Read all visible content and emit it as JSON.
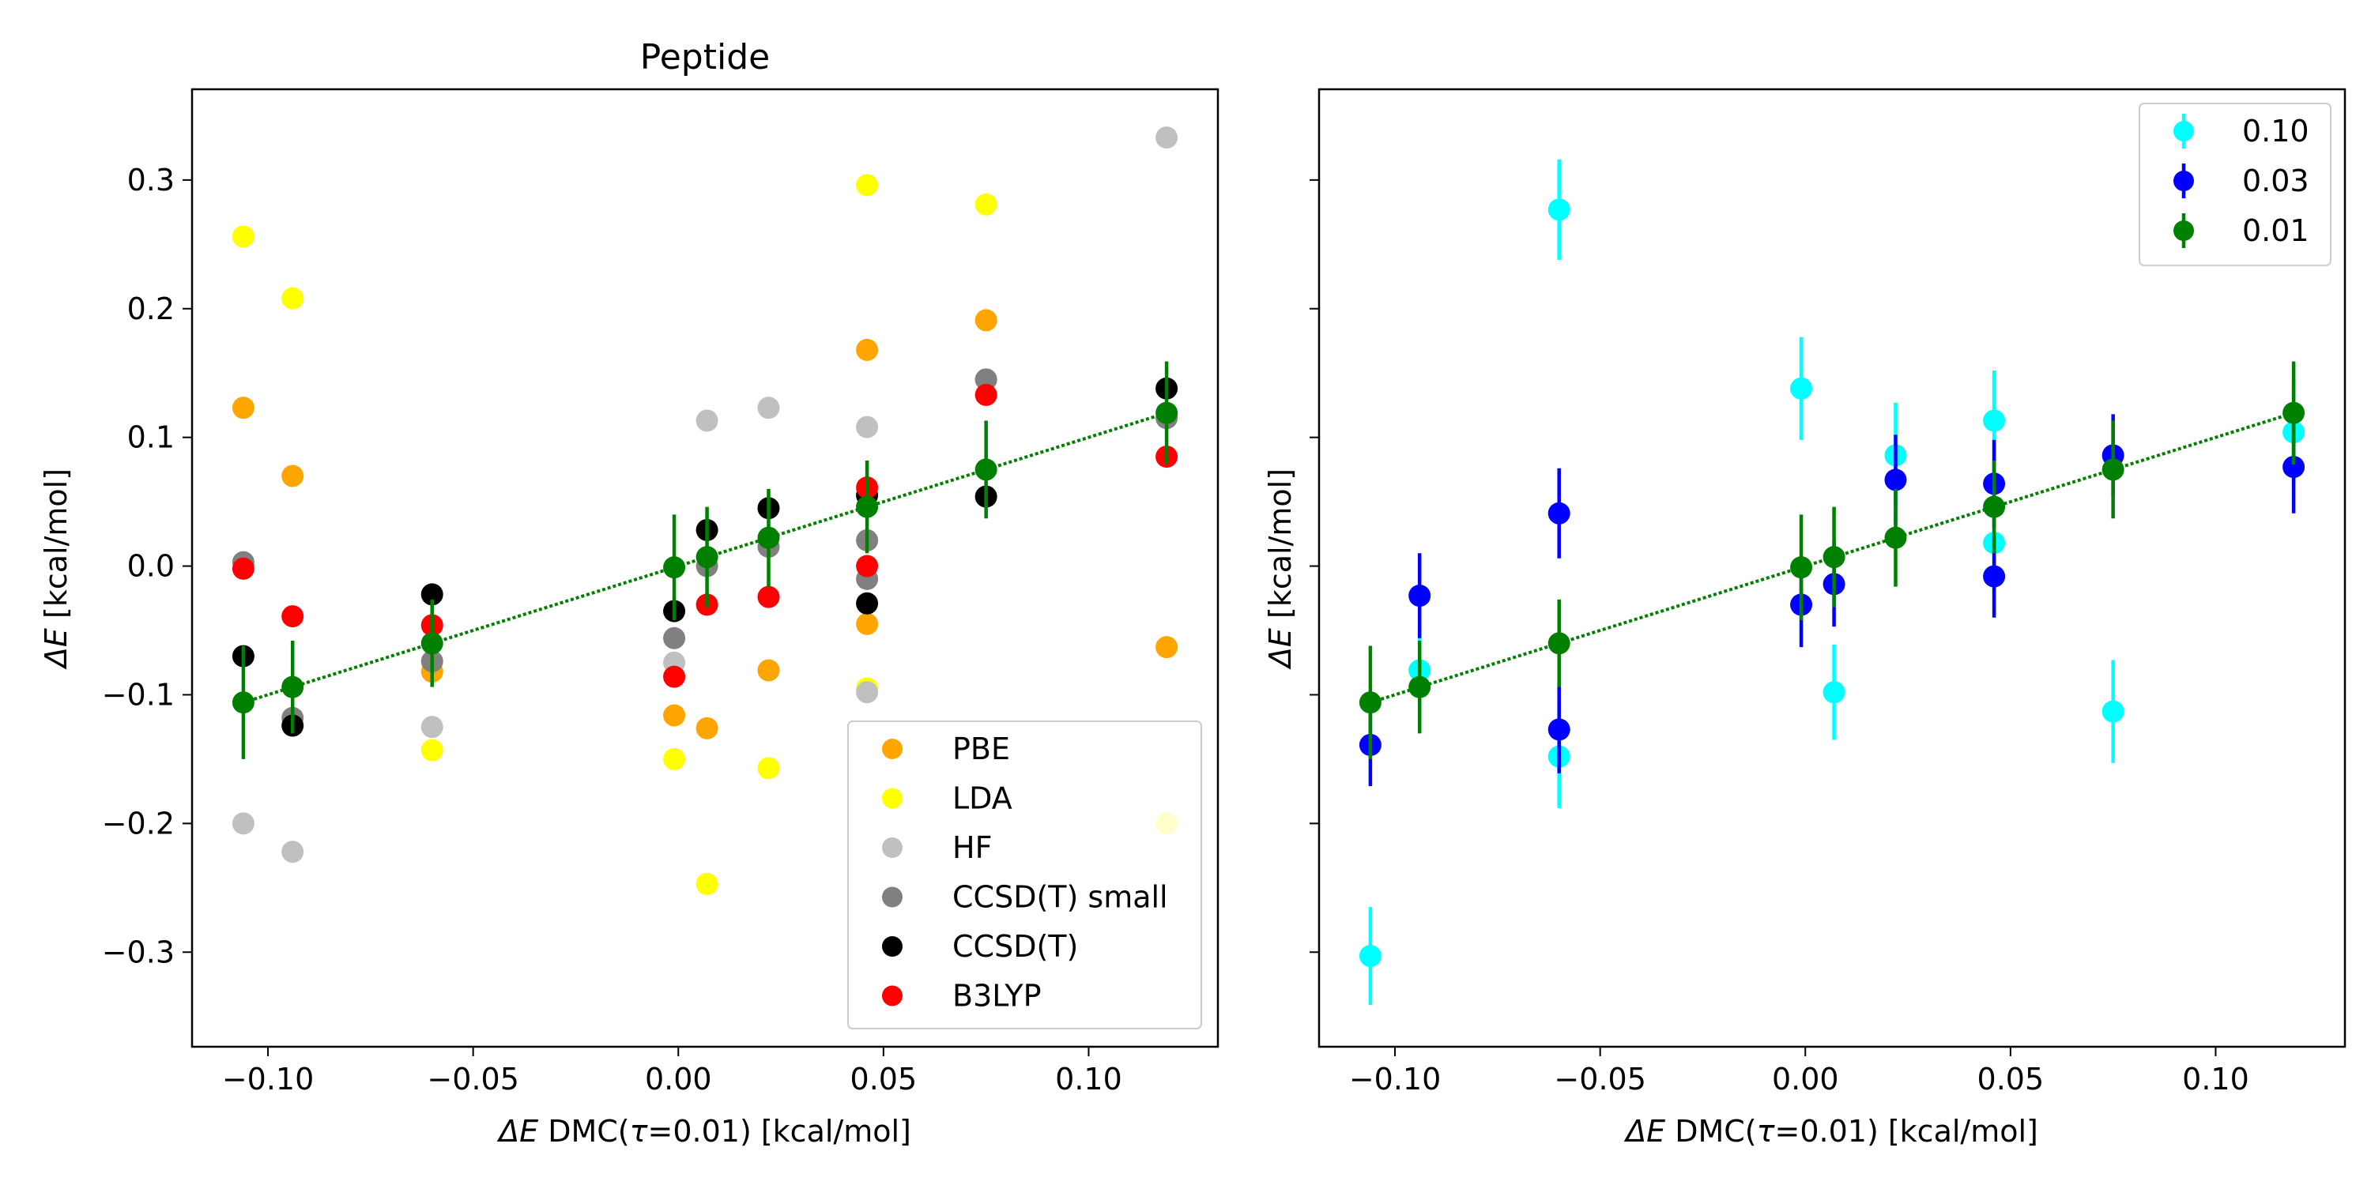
{
  "chart_data": [
    {
      "type": "scatter",
      "title": "Peptide",
      "xlabel_sym": "ΔE",
      "xlabel_pre": " DMC(",
      "xlabel_tau": "τ",
      "xlabel_post": "=0.01) [kcal/mol]",
      "ylabel_sym": "ΔE",
      "ylabel_post": " [kcal/mol]",
      "xlim": [
        -0.1185,
        0.1315
      ],
      "ylim": [
        -0.3735,
        0.3705
      ],
      "xticks": [
        -0.1,
        -0.05,
        0.0,
        0.05,
        0.1
      ],
      "xtick_labels": [
        "−0.10",
        "−0.05",
        "0.00",
        "0.05",
        "0.10"
      ],
      "yticks": [
        -0.3,
        -0.2,
        -0.1,
        0.0,
        0.1,
        0.2,
        0.3
      ],
      "ytick_labels": [
        "−0.3",
        "−0.2",
        "−0.1",
        "0.0",
        "0.1",
        "0.2",
        "0.3"
      ],
      "legend_position": "lower-right",
      "x": [
        -0.106,
        -0.094,
        -0.06,
        -0.001,
        0.007,
        0.022,
        0.046,
        0.075,
        0.119
      ],
      "series": [
        {
          "name": "PBE",
          "color": "#ffa500",
          "y": [
            0.123,
            0.07,
            -0.082,
            -0.116,
            -0.126,
            -0.081,
            -0.045,
            0.191,
            -0.063
          ]
        },
        {
          "name": "",
          "color": "#ffa500",
          "x": [
            0.046
          ],
          "y": [
            0.168
          ]
        },
        {
          "name": "LDA",
          "color": "#ffff00",
          "y": [
            0.256,
            0.208,
            -0.143,
            -0.15,
            -0.247,
            -0.157,
            0.296,
            0.281,
            -0.2
          ]
        },
        {
          "name": "",
          "color": "#ffff00",
          "x": [
            0.046
          ],
          "y": [
            -0.095
          ]
        },
        {
          "name": "HF",
          "color": "#c0c0c0",
          "y": [
            -0.2,
            -0.222,
            -0.125,
            -0.075,
            0.113,
            0.123,
            0.108,
            0.145,
            0.333
          ]
        },
        {
          "name": "",
          "color": "#c0c0c0",
          "x": [
            0.046
          ],
          "y": [
            -0.098
          ]
        },
        {
          "name": "CCSD(T) small",
          "color": "#808080",
          "y": [
            0.003,
            -0.118,
            -0.074,
            -0.056,
            0.0,
            0.015,
            -0.01,
            0.145,
            0.115
          ]
        },
        {
          "name": "",
          "color": "#808080",
          "x": [
            0.046
          ],
          "y": [
            0.02
          ]
        },
        {
          "name": "CCSD(T)",
          "color": "#000000",
          "y": [
            -0.07,
            -0.124,
            -0.022,
            -0.035,
            0.028,
            0.045,
            -0.029,
            0.054,
            0.138
          ]
        },
        {
          "name": "",
          "color": "#000000",
          "x": [
            0.046
          ],
          "y": [
            0.055
          ]
        },
        {
          "name": "B3LYP",
          "color": "#ff0000",
          "y": [
            -0.002,
            -0.039,
            -0.046,
            -0.086,
            -0.03,
            -0.024,
            0.0,
            0.133,
            0.085
          ]
        },
        {
          "name": "",
          "color": "#ff0000",
          "x": [
            0.046
          ],
          "y": [
            0.061
          ]
        }
      ],
      "errorbar_series": [
        {
          "name": "",
          "color": "#008000",
          "y": [
            -0.106,
            -0.094,
            -0.06,
            -0.001,
            0.007,
            0.022,
            0.046,
            0.075,
            0.119
          ],
          "yerr": [
            0.044,
            0.036,
            0.034,
            0.041,
            0.039,
            0.038,
            0.036,
            0.038,
            0.04
          ]
        }
      ],
      "fit_line": {
        "x": [
          -0.106,
          0.119
        ],
        "y": [
          -0.106,
          0.119
        ],
        "color": "#008000",
        "style": "dotted"
      }
    },
    {
      "type": "scatter",
      "xlabel_sym": "ΔE",
      "xlabel_pre": " DMC(",
      "xlabel_tau": "τ",
      "xlabel_post": "=0.01) [kcal/mol]",
      "ylabel_sym": "ΔE",
      "ylabel_post": " [kcal/mol]",
      "xlim": [
        -0.1185,
        0.1315
      ],
      "ylim": [
        -0.3735,
        0.3705
      ],
      "xticks": [
        -0.1,
        -0.05,
        0.0,
        0.05,
        0.1
      ],
      "xtick_labels": [
        "−0.10",
        "−0.05",
        "0.00",
        "0.05",
        "0.10"
      ],
      "yticks": [
        -0.3,
        -0.2,
        -0.1,
        0.0,
        0.1,
        0.2,
        0.3
      ],
      "ytick_labels": [],
      "legend_position": "top-right",
      "x": [
        -0.106,
        -0.094,
        -0.06,
        -0.001,
        0.007,
        0.022,
        0.046,
        0.075,
        0.119
      ],
      "series": [],
      "errorbar_series": [
        {
          "name": "0.10",
          "color": "#00ffff",
          "y": [
            -0.303,
            -0.081,
            0.277,
            0.138,
            -0.098,
            0.086,
            0.113,
            -0.113,
            0.104
          ],
          "yerr": [
            0.038,
            0.036,
            0.039,
            0.04,
            0.037,
            0.041,
            0.039,
            0.04,
            0.04
          ]
        },
        {
          "name": "",
          "color": "#00ffff",
          "x": [
            -0.06,
            0.046
          ],
          "y": [
            -0.148,
            0.018
          ],
          "yerr": [
            0.04,
            0.038
          ]
        },
        {
          "name": "0.03",
          "color": "#0000ff",
          "y": [
            -0.139,
            -0.023,
            0.041,
            -0.03,
            -0.014,
            0.067,
            0.064,
            0.086,
            0.077
          ],
          "yerr": [
            0.032,
            0.033,
            0.035,
            0.033,
            0.033,
            0.035,
            0.034,
            0.032,
            0.036
          ]
        },
        {
          "name": "",
          "color": "#0000ff",
          "x": [
            -0.06,
            0.046
          ],
          "y": [
            -0.127,
            -0.008
          ],
          "yerr": [
            0.034,
            0.032
          ]
        },
        {
          "name": "0.01",
          "color": "#008000",
          "y": [
            -0.106,
            -0.094,
            -0.06,
            -0.001,
            0.007,
            0.022,
            0.046,
            0.075,
            0.119
          ],
          "yerr": [
            0.044,
            0.036,
            0.034,
            0.041,
            0.039,
            0.038,
            0.036,
            0.038,
            0.04
          ]
        }
      ],
      "fit_line": {
        "x": [
          -0.106,
          0.119
        ],
        "y": [
          -0.106,
          0.119
        ],
        "color": "#008000",
        "style": "dotted"
      }
    }
  ]
}
